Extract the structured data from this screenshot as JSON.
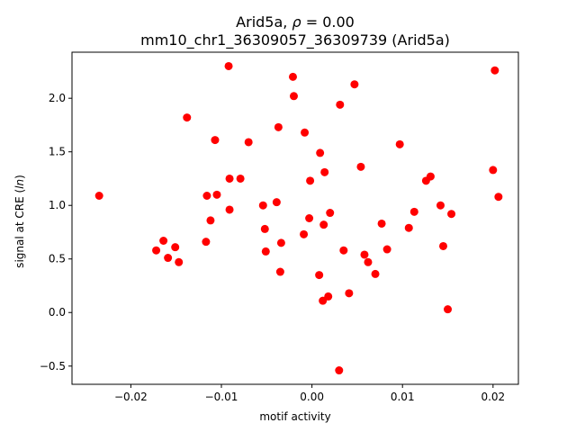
{
  "chart_data": {
    "type": "scatter",
    "title": "Arid5a, ρ = 0.00",
    "title_prefix": "Arid5a, ",
    "title_rho_symbol": "ρ",
    "title_rho_value": " = 0.00",
    "subtitle": "mm10_chr1_36309057_36309739 (Arid5a)",
    "xlabel": "motif activity",
    "ylabel_prefix": "signal at CRE (",
    "ylabel_italic": "ln",
    "ylabel_suffix": ")",
    "xlim": [
      -0.0265,
      0.0228
    ],
    "ylim": [
      -0.67,
      2.43
    ],
    "xticks": [
      -0.02,
      -0.01,
      0.0,
      0.01,
      0.02
    ],
    "xtick_labels": [
      "−0.02",
      "−0.01",
      "0.00",
      "0.01",
      "0.02"
    ],
    "yticks": [
      -0.5,
      0.0,
      0.5,
      1.0,
      1.5,
      2.0
    ],
    "ytick_labels": [
      "−0.5",
      "0.0",
      "0.5",
      "1.0",
      "1.5",
      "2.0"
    ],
    "grid": false,
    "marker_color": "#ff0000",
    "points": [
      {
        "x": -0.0235,
        "y": 1.09
      },
      {
        "x": -0.0172,
        "y": 0.58
      },
      {
        "x": -0.0164,
        "y": 0.67
      },
      {
        "x": -0.0159,
        "y": 0.51
      },
      {
        "x": -0.0151,
        "y": 0.61
      },
      {
        "x": -0.0147,
        "y": 0.47
      },
      {
        "x": -0.0138,
        "y": 1.82
      },
      {
        "x": -0.0117,
        "y": 0.66
      },
      {
        "x": -0.0116,
        "y": 1.09
      },
      {
        "x": -0.0112,
        "y": 0.86
      },
      {
        "x": -0.0107,
        "y": 1.61
      },
      {
        "x": -0.0105,
        "y": 1.1
      },
      {
        "x": -0.0092,
        "y": 2.3
      },
      {
        "x": -0.0091,
        "y": 1.25
      },
      {
        "x": -0.0091,
        "y": 0.96
      },
      {
        "x": -0.0079,
        "y": 1.25
      },
      {
        "x": -0.007,
        "y": 1.59
      },
      {
        "x": -0.0054,
        "y": 1.0
      },
      {
        "x": -0.0052,
        "y": 0.78
      },
      {
        "x": -0.0051,
        "y": 0.57
      },
      {
        "x": -0.0039,
        "y": 1.03
      },
      {
        "x": -0.0037,
        "y": 1.73
      },
      {
        "x": -0.0035,
        "y": 0.38
      },
      {
        "x": -0.0034,
        "y": 0.65
      },
      {
        "x": -0.0021,
        "y": 2.2
      },
      {
        "x": -0.002,
        "y": 2.02
      },
      {
        "x": -0.0009,
        "y": 0.73
      },
      {
        "x": -0.0008,
        "y": 1.68
      },
      {
        "x": -0.0003,
        "y": 0.88
      },
      {
        "x": -0.0002,
        "y": 1.23
      },
      {
        "x": 0.0008,
        "y": 0.35
      },
      {
        "x": 0.0009,
        "y": 1.49
      },
      {
        "x": 0.0012,
        "y": 0.11
      },
      {
        "x": 0.0013,
        "y": 0.82
      },
      {
        "x": 0.0014,
        "y": 1.31
      },
      {
        "x": 0.0018,
        "y": 0.15
      },
      {
        "x": 0.002,
        "y": 0.93
      },
      {
        "x": 0.003,
        "y": -0.54
      },
      {
        "x": 0.0031,
        "y": 1.94
      },
      {
        "x": 0.0035,
        "y": 0.58
      },
      {
        "x": 0.0041,
        "y": 0.18
      },
      {
        "x": 0.0047,
        "y": 2.13
      },
      {
        "x": 0.0054,
        "y": 1.36
      },
      {
        "x": 0.0058,
        "y": 0.54
      },
      {
        "x": 0.0062,
        "y": 0.47
      },
      {
        "x": 0.007,
        "y": 0.36
      },
      {
        "x": 0.0077,
        "y": 0.83
      },
      {
        "x": 0.0083,
        "y": 0.59
      },
      {
        "x": 0.0097,
        "y": 1.57
      },
      {
        "x": 0.0107,
        "y": 0.79
      },
      {
        "x": 0.0113,
        "y": 0.94
      },
      {
        "x": 0.0126,
        "y": 1.23
      },
      {
        "x": 0.0131,
        "y": 1.27
      },
      {
        "x": 0.0142,
        "y": 1.0
      },
      {
        "x": 0.0145,
        "y": 0.62
      },
      {
        "x": 0.015,
        "y": 0.03
      },
      {
        "x": 0.0154,
        "y": 0.92
      },
      {
        "x": 0.02,
        "y": 1.33
      },
      {
        "x": 0.0202,
        "y": 2.26
      },
      {
        "x": 0.0206,
        "y": 1.08
      }
    ]
  }
}
